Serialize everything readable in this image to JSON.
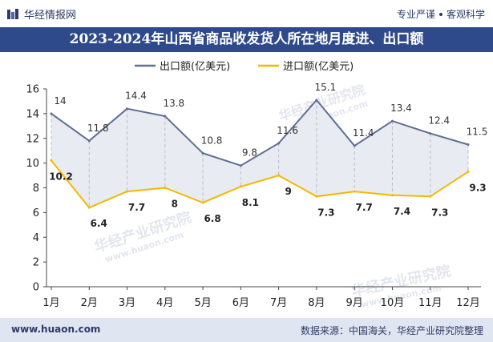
{
  "header": {
    "brand": "华经情报网",
    "tagline_left": "专业严谨",
    "tagline_right": "客观科学"
  },
  "footer": {
    "url": "www.huaon.com",
    "source": "数据来源：中国海关，华经产业研究院整理"
  },
  "watermark": {
    "cn": "华经产业研究院",
    "en": "www.huaon.com"
  },
  "colors": {
    "export": "#5f6e91",
    "import": "#f5b800",
    "band": "#e9ebf2",
    "title_bg": "#2f4a8a"
  },
  "chart_data": {
    "type": "line",
    "title": "2023-2024年山西省商品收发货人所在地月度进、出口额",
    "categories": [
      "1月",
      "2月",
      "3月",
      "4月",
      "5月",
      "6月",
      "7月",
      "8月",
      "9月",
      "10月",
      "11月",
      "12月"
    ],
    "series": [
      {
        "name": "出口额(亿美元)",
        "values": [
          14,
          11.8,
          14.4,
          13.8,
          10.8,
          9.8,
          11.6,
          15.1,
          11.4,
          13.4,
          12.4,
          11.5
        ]
      },
      {
        "name": "进口额(亿美元)",
        "values": [
          10.2,
          6.4,
          7.7,
          8,
          6.8,
          8.1,
          9,
          7.3,
          7.7,
          7.4,
          7.3,
          9.3
        ]
      }
    ],
    "yticks": [
      0,
      2,
      4,
      6,
      8,
      10,
      12,
      14,
      16
    ],
    "ylim": [
      0,
      16
    ],
    "legend_position": "top-center",
    "grid": false
  }
}
